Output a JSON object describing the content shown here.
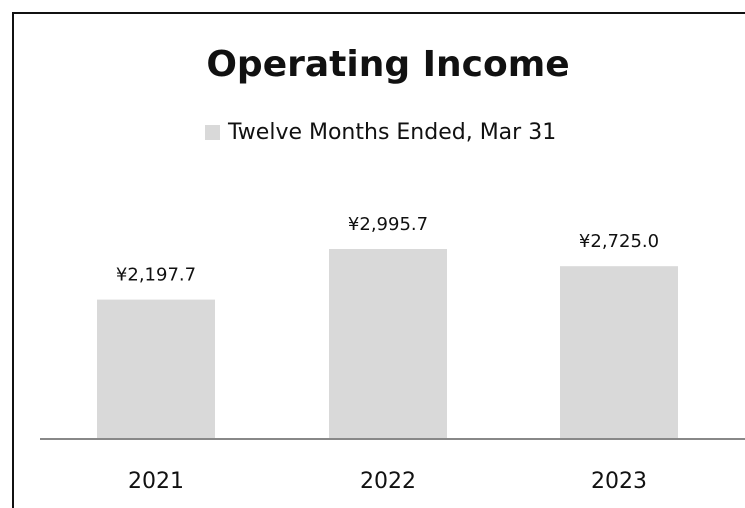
{
  "chart_data": {
    "type": "bar",
    "title": "Operating Income",
    "categories": [
      "2021",
      "2022",
      "2023"
    ],
    "series": [
      {
        "name": "Twelve Months Ended, Mar 31",
        "color": "#d9d9d9",
        "values": [
          2197.7,
          2995.7,
          2725.0
        ],
        "value_labels": [
          "¥2,197.7",
          "¥2,995.7",
          "¥2,725.0"
        ]
      }
    ]
  }
}
